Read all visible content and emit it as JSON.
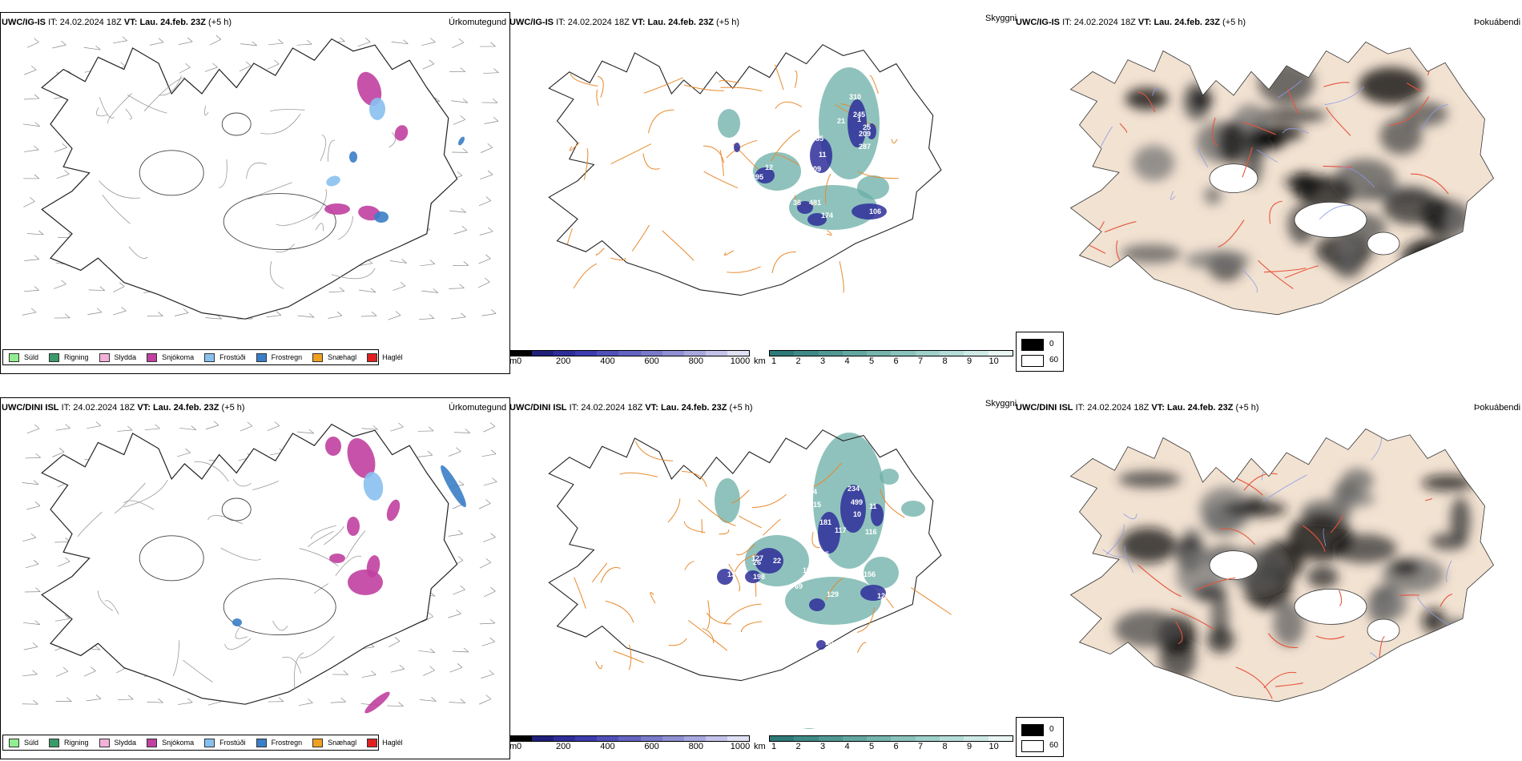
{
  "rows": [
    {
      "model": "UWC/IG-IS",
      "it_label": "IT:",
      "it_value": "24.02.2024 18Z",
      "vt_label": "VT:",
      "vt_value": "Lau. 24.feb. 23Z",
      "offset": "(+5 h)"
    },
    {
      "model": "UWC/DINI ISL",
      "it_label": "IT:",
      "it_value": "24.02.2024 18Z",
      "vt_label": "VT:",
      "vt_value": "Lau. 24.feb. 23Z",
      "offset": "(+5 h)"
    }
  ],
  "panel_kinds": {
    "precip_type": "Úrkomutegund",
    "cloud_base": "Skyggni",
    "cloud_cover": "Þokuábendi"
  },
  "precip_legend": [
    {
      "label": "Súld",
      "color": "#90ee90"
    },
    {
      "label": "Rigning",
      "color": "#3a9a6a"
    },
    {
      "label": "Slydda",
      "color": "#f3b0d8"
    },
    {
      "label": "Snjókoma",
      "color": "#c040a0"
    },
    {
      "label": "Frostúði",
      "color": "#88c0f0"
    },
    {
      "label": "Frostregn",
      "color": "#3a7ec8"
    },
    {
      "label": "Snæhagl",
      "color": "#f0a020"
    },
    {
      "label": "Haglél",
      "color": "#e02020"
    }
  ],
  "ceiling_bar": {
    "unit": "m",
    "ticks": [
      "0",
      "200",
      "400",
      "600",
      "800",
      "1000"
    ],
    "colors": [
      "#000000",
      "#20207a",
      "#2e2e9a",
      "#3c3cae",
      "#5050b8",
      "#6464c2",
      "#7a7acb",
      "#9090d4",
      "#a8a8de",
      "#c4c4ea",
      "#e0e0f4"
    ]
  },
  "visibility_bar": {
    "unit": "km",
    "ticks": [
      "1",
      "2",
      "3",
      "4",
      "5",
      "6",
      "7",
      "8",
      "9",
      "10"
    ],
    "colors": [
      "#2e7a78",
      "#3f8a86",
      "#509893",
      "#63a7a1",
      "#76b5ae",
      "#8ac3bc",
      "#9fd0ca",
      "#b6ddd8",
      "#ceeae6",
      "#e8f5f3"
    ]
  },
  "fog_legend": [
    {
      "label": "0",
      "color": "#000000"
    },
    {
      "label": "60",
      "color": "#ffffff"
    }
  ],
  "top_ceiling_labels": [
    "310",
    "245",
    "25",
    "287",
    "209",
    "55",
    "11",
    "109",
    "12",
    "195",
    "18",
    "481",
    "36",
    "174",
    "106",
    "10",
    "1",
    "21"
  ],
  "bottom_ceiling_labels": [
    "234",
    "499",
    "10",
    "94",
    "15",
    "181",
    "117",
    "116",
    "11",
    "127",
    "22",
    "105",
    "19",
    "198",
    "156",
    "122",
    "129",
    "69",
    "26",
    "13",
    "17",
    "10"
  ]
}
